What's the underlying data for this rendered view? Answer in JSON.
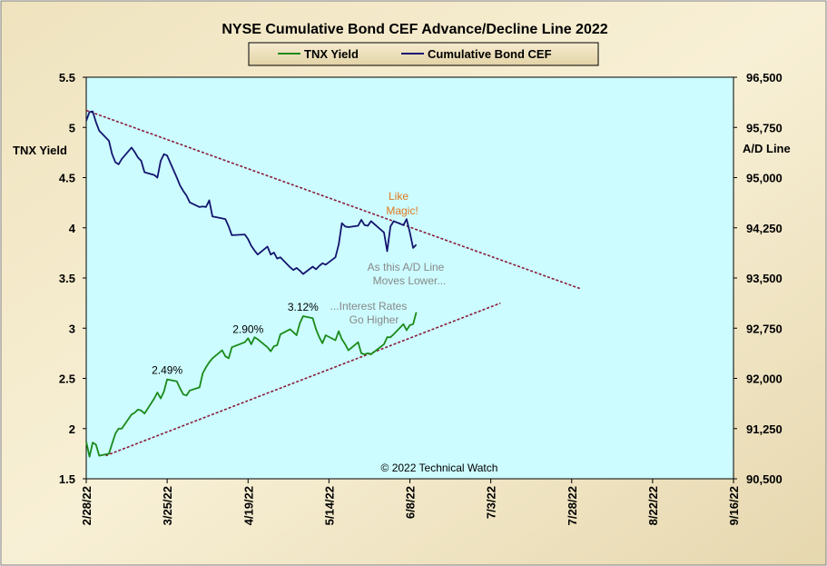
{
  "chart_data": {
    "type": "line",
    "title": "NYSE Cumulative  Bond CEF Advance/Decline  Line 2022",
    "ylabel_left": "TNX Yield",
    "ylabel_right": "A/D Line",
    "ylim_left": [
      1.5,
      5.5
    ],
    "yticks_left": [
      "1.5",
      "2",
      "2.5",
      "3",
      "3.5",
      "4",
      "4.5",
      "5",
      "5.5"
    ],
    "ylim_right": [
      90500,
      96500
    ],
    "yticks_right": [
      "90,500",
      "91,250",
      "92,000",
      "92,750",
      "93,500",
      "94,250",
      "95,000",
      "95,750",
      "96,500"
    ],
    "xticks": [
      "2/28/22",
      "3/25/22",
      "4/19/22",
      "5/14/22",
      "6/8/22",
      "7/3/22",
      "7/28/22",
      "8/22/22",
      "9/16/22"
    ],
    "grid": false,
    "legend_position": "top-center",
    "series": [
      {
        "name": "TNX Yield",
        "axis": "left",
        "color": "#1a8a1a",
        "x": [
          "2022-02-28",
          "2022-03-01",
          "2022-03-02",
          "2022-03-03",
          "2022-03-04",
          "2022-03-07",
          "2022-03-08",
          "2022-03-09",
          "2022-03-10",
          "2022-03-11",
          "2022-03-14",
          "2022-03-15",
          "2022-03-16",
          "2022-03-17",
          "2022-03-18",
          "2022-03-21",
          "2022-03-22",
          "2022-03-23",
          "2022-03-24",
          "2022-03-25",
          "2022-03-28",
          "2022-03-29",
          "2022-03-30",
          "2022-03-31",
          "2022-04-01",
          "2022-04-04",
          "2022-04-05",
          "2022-04-06",
          "2022-04-07",
          "2022-04-08",
          "2022-04-11",
          "2022-04-12",
          "2022-04-13",
          "2022-04-14",
          "2022-04-18",
          "2022-04-19",
          "2022-04-20",
          "2022-04-21",
          "2022-04-22",
          "2022-04-25",
          "2022-04-26",
          "2022-04-27",
          "2022-04-28",
          "2022-04-29",
          "2022-05-02",
          "2022-05-03",
          "2022-05-04",
          "2022-05-05",
          "2022-05-06",
          "2022-05-09",
          "2022-05-10",
          "2022-05-11",
          "2022-05-12",
          "2022-05-13",
          "2022-05-16",
          "2022-05-17",
          "2022-05-18",
          "2022-05-19",
          "2022-05-20",
          "2022-05-23",
          "2022-05-24",
          "2022-05-25",
          "2022-05-26",
          "2022-05-27",
          "2022-05-31",
          "2022-06-01",
          "2022-06-02",
          "2022-06-03",
          "2022-06-06",
          "2022-06-07",
          "2022-06-08",
          "2022-06-09",
          "2022-06-10"
        ],
        "values": [
          1.87,
          1.72,
          1.86,
          1.84,
          1.73,
          1.75,
          1.85,
          1.95,
          2.0,
          2.0,
          2.14,
          2.16,
          2.19,
          2.18,
          2.15,
          2.3,
          2.36,
          2.3,
          2.37,
          2.49,
          2.47,
          2.4,
          2.34,
          2.33,
          2.38,
          2.41,
          2.55,
          2.61,
          2.66,
          2.7,
          2.78,
          2.72,
          2.7,
          2.81,
          2.86,
          2.9,
          2.84,
          2.91,
          2.89,
          2.81,
          2.77,
          2.82,
          2.83,
          2.94,
          2.99,
          2.96,
          2.93,
          3.05,
          3.12,
          3.1,
          2.99,
          2.91,
          2.85,
          2.93,
          2.88,
          2.97,
          2.89,
          2.84,
          2.78,
          2.86,
          2.75,
          2.74,
          2.75,
          2.74,
          2.84,
          2.91,
          2.91,
          2.94,
          3.04,
          2.98,
          3.03,
          3.04,
          3.16
        ]
      },
      {
        "name": "Cumulative Bond CEF",
        "axis": "right",
        "color": "#14146e",
        "x": [
          "2022-02-28",
          "2022-03-01",
          "2022-03-02",
          "2022-03-03",
          "2022-03-04",
          "2022-03-07",
          "2022-03-08",
          "2022-03-09",
          "2022-03-10",
          "2022-03-11",
          "2022-03-14",
          "2022-03-15",
          "2022-03-16",
          "2022-03-17",
          "2022-03-18",
          "2022-03-21",
          "2022-03-22",
          "2022-03-23",
          "2022-03-24",
          "2022-03-25",
          "2022-03-28",
          "2022-03-29",
          "2022-03-30",
          "2022-03-31",
          "2022-04-01",
          "2022-04-04",
          "2022-04-05",
          "2022-04-06",
          "2022-04-07",
          "2022-04-08",
          "2022-04-11",
          "2022-04-12",
          "2022-04-13",
          "2022-04-14",
          "2022-04-18",
          "2022-04-19",
          "2022-04-20",
          "2022-04-21",
          "2022-04-22",
          "2022-04-25",
          "2022-04-26",
          "2022-04-27",
          "2022-04-28",
          "2022-04-29",
          "2022-05-02",
          "2022-05-03",
          "2022-05-04",
          "2022-05-05",
          "2022-05-06",
          "2022-05-09",
          "2022-05-10",
          "2022-05-11",
          "2022-05-12",
          "2022-05-13",
          "2022-05-16",
          "2022-05-17",
          "2022-05-18",
          "2022-05-19",
          "2022-05-20",
          "2022-05-23",
          "2022-05-24",
          "2022-05-25",
          "2022-05-26",
          "2022-05-27",
          "2022-05-31",
          "2022-06-01",
          "2022-06-02",
          "2022-06-03",
          "2022-06-06",
          "2022-06-07",
          "2022-06-08",
          "2022-06-09",
          "2022-06-10"
        ],
        "values": [
          95850,
          95980,
          95990,
          95830,
          95700,
          95550,
          95350,
          95230,
          95200,
          95280,
          95450,
          95380,
          95300,
          95250,
          95080,
          95040,
          95000,
          95250,
          95350,
          95330,
          95000,
          94880,
          94800,
          94730,
          94630,
          94560,
          94570,
          94560,
          94660,
          94420,
          94390,
          94380,
          94270,
          94140,
          94150,
          94080,
          93980,
          93910,
          93850,
          93970,
          93850,
          93880,
          93790,
          93810,
          93660,
          93620,
          93650,
          93610,
          93560,
          93670,
          93630,
          93680,
          93720,
          93700,
          93810,
          94000,
          94320,
          94270,
          94260,
          94280,
          94370,
          94290,
          94280,
          94350,
          94180,
          93900,
          94270,
          94350,
          94290,
          94380,
          94180,
          93950,
          94000
        ]
      }
    ],
    "trendlines": [
      {
        "name": "upper-resistance",
        "from": [
          "2022-02-28",
          5.17
        ],
        "to": [
          "2022-07-31",
          3.39
        ],
        "axis": "left"
      },
      {
        "name": "lower-support",
        "from": [
          "2022-03-06",
          1.73
        ],
        "to": [
          "2022-07-06",
          3.25
        ],
        "axis": "left"
      }
    ],
    "data_labels": [
      {
        "text": "2.49%",
        "x": "2022-03-25",
        "y": 2.49
      },
      {
        "text": "2.90%",
        "x": "2022-04-19",
        "y": 2.9
      },
      {
        "text": "3.12%",
        "x": "2022-05-06",
        "y": 3.12
      }
    ],
    "annotations": [
      {
        "text": "Like",
        "color": "#e07820"
      },
      {
        "text": "Magic!",
        "color": "#e07820"
      },
      {
        "text": "As this A/D Line",
        "color": "#888888"
      },
      {
        "text": "Moves  Lower...",
        "color": "#888888"
      },
      {
        "text": "...Interest Rates",
        "color": "#888888"
      },
      {
        "text": "Go Higher",
        "color": "#888888"
      }
    ],
    "copyright": "© 2022 Technical  Watch",
    "plot_background": "#ccfcff",
    "frame_background": "#f3e7c2"
  }
}
